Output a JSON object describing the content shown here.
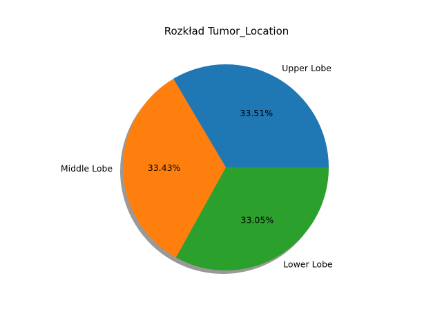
{
  "chart_data": {
    "type": "pie",
    "title": "Rozkład Tumor_Location",
    "slices": [
      {
        "label": "Upper Lobe",
        "value": 33.51,
        "pct_text": "33.51%",
        "color": "#1f77b4"
      },
      {
        "label": "Middle Lobe",
        "value": 33.43,
        "pct_text": "33.43%",
        "color": "#ff7f0e"
      },
      {
        "label": "Lower Lobe",
        "value": 33.05,
        "pct_text": "33.05%",
        "color": "#2ca02c"
      }
    ],
    "start_angle_deg": 0,
    "direction": "counterclockwise",
    "shadow": true
  }
}
